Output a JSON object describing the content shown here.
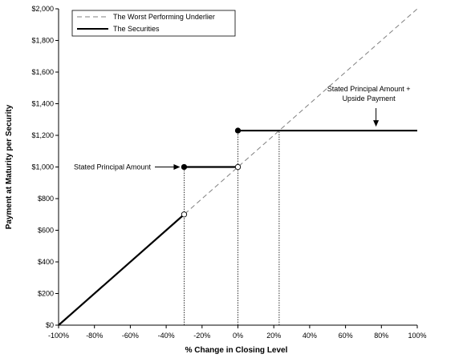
{
  "chart_data": {
    "type": "line",
    "xlabel": "% Change in Closing Level",
    "ylabel": "Payment at Maturity per Security",
    "xlim": [
      -100,
      100
    ],
    "ylim": [
      0,
      2000
    ],
    "x_ticks": [
      -100,
      -80,
      -60,
      -40,
      -20,
      0,
      20,
      40,
      60,
      80,
      100
    ],
    "x_tick_labels": [
      "-100%",
      "-80%",
      "-60%",
      "-40%",
      "-20%",
      "0%",
      "20%",
      "40%",
      "60%",
      "80%",
      "100%"
    ],
    "y_ticks": [
      0,
      200,
      400,
      600,
      800,
      1000,
      1200,
      1400,
      1600,
      1800,
      2000
    ],
    "y_tick_labels": [
      "$0",
      "$200",
      "$400",
      "$600",
      "$800",
      "$1,000",
      "$1,200",
      "$1,400",
      "$1,600",
      "$1,800",
      "$2,000"
    ],
    "grid": false,
    "legend_position": "top-left",
    "series": [
      {
        "name": "The Worst Performing Underlier",
        "style": "dashed",
        "color": "#808080",
        "x": [
          -100,
          100
        ],
        "y": [
          0,
          2000
        ]
      },
      {
        "name": "The Securities",
        "style": "solid",
        "color": "#000000",
        "segments": [
          {
            "x": [
              -100,
              -30
            ],
            "y": [
              0,
              700
            ]
          },
          {
            "x": [
              -30,
              0
            ],
            "y": [
              1000,
              1000
            ]
          },
          {
            "x": [
              0,
              100
            ],
            "y": [
              1230,
              1230
            ]
          }
        ],
        "markers": [
          {
            "x": -30,
            "y": 700,
            "fill": "open"
          },
          {
            "x": -30,
            "y": 1000,
            "fill": "filled"
          },
          {
            "x": 0,
            "y": 1000,
            "fill": "open"
          },
          {
            "x": 0,
            "y": 1230,
            "fill": "filled"
          }
        ]
      }
    ],
    "reference_lines": [
      {
        "x": -30,
        "y_from": 0,
        "y_to": 1000
      },
      {
        "x": 0,
        "y_from": 0,
        "y_to": 1230
      },
      {
        "x": 23,
        "y_from": 0,
        "y_to": 1230
      }
    ],
    "annotations": [
      {
        "text": "Stated Principal Amount",
        "points_to": {
          "x": -30,
          "y": 1000
        }
      },
      {
        "lines": [
          "Stated Principal Amount +",
          "Upside Payment"
        ],
        "points_to": {
          "x": 77,
          "y": 1230
        }
      }
    ]
  }
}
